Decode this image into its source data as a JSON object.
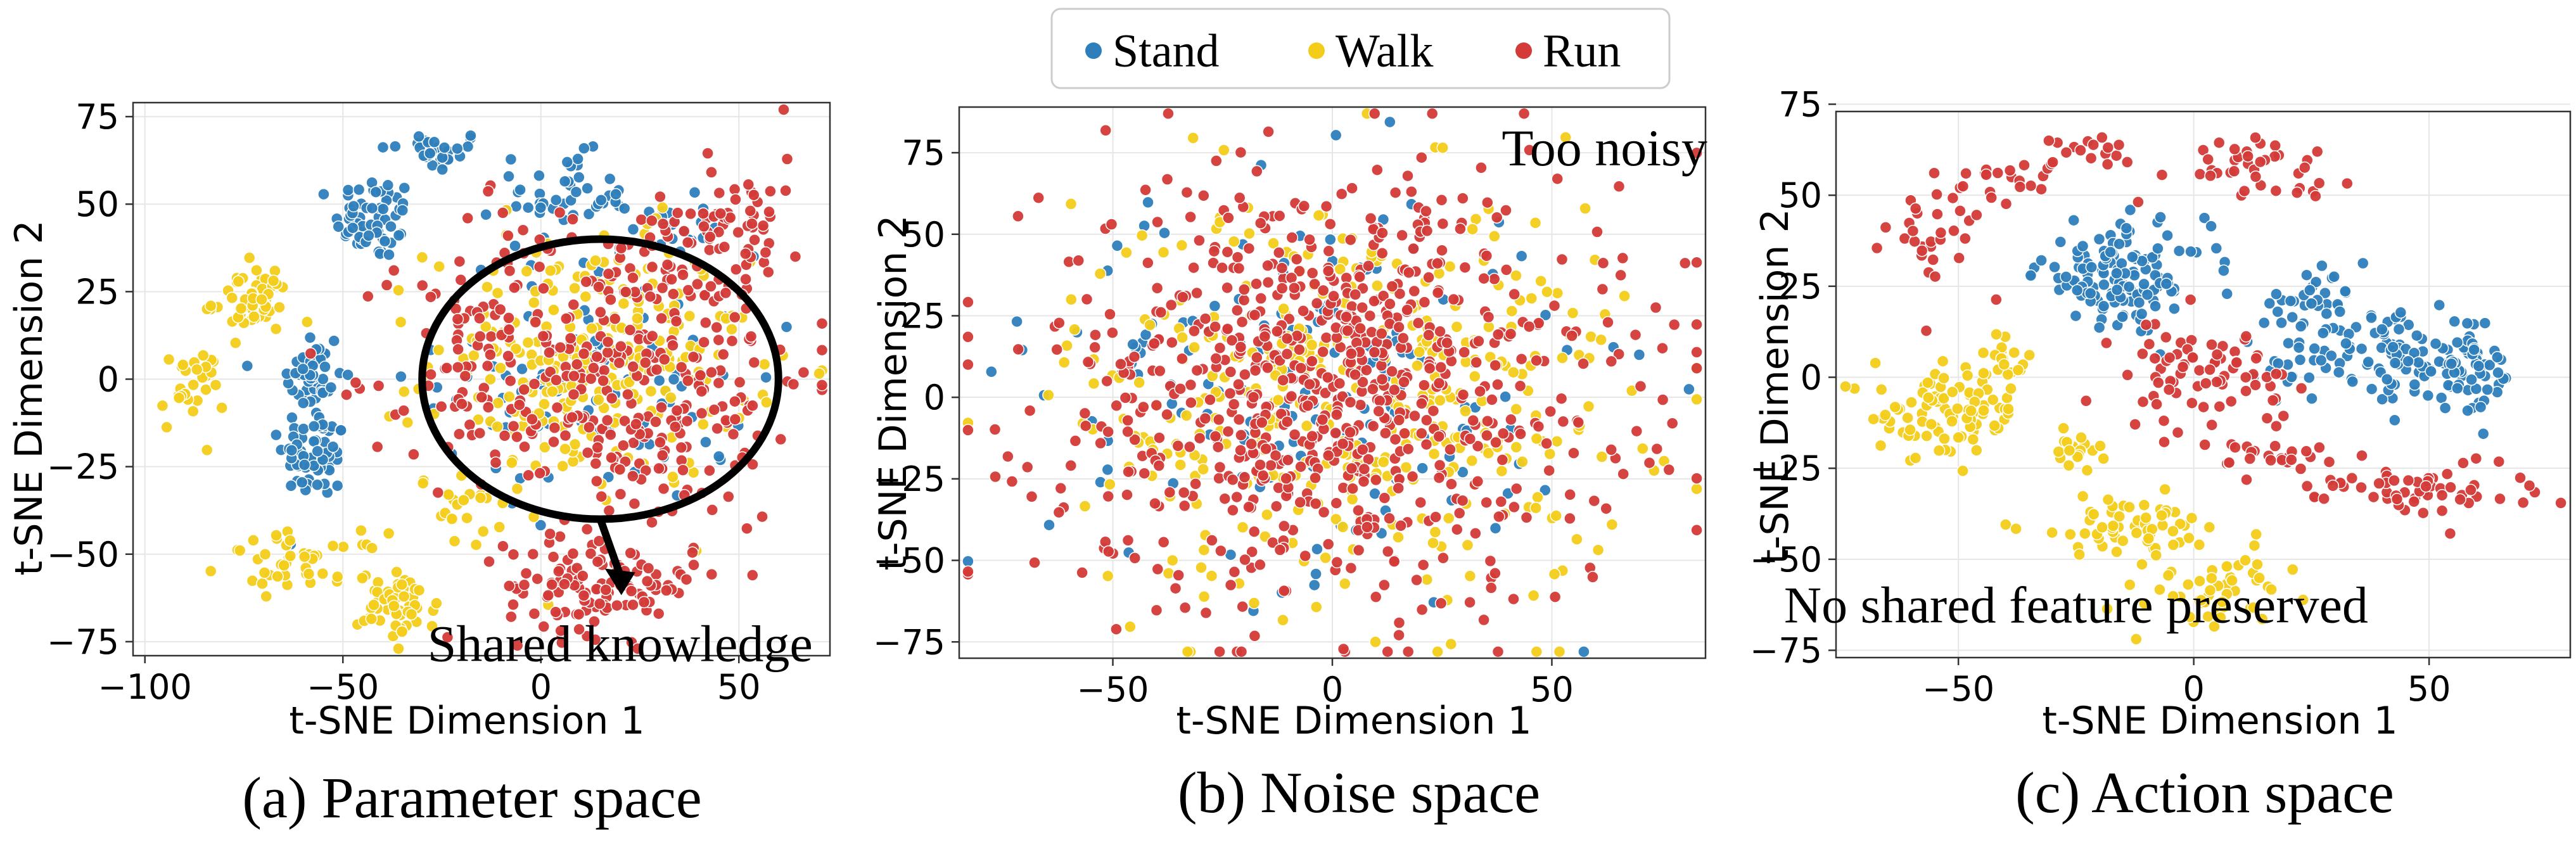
{
  "legend": {
    "items": [
      {
        "label": "Stand",
        "color": "#2e7ebc"
      },
      {
        "label": "Walk",
        "color": "#f3cd1a"
      },
      {
        "label": "Run",
        "color": "#d43a37"
      }
    ]
  },
  "chart_data": [
    {
      "type": "scatter",
      "title": "",
      "caption": "(a) Parameter space",
      "xlabel": "t-SNE Dimension 1",
      "ylabel": "t-SNE Dimension 2",
      "xlim": [
        -103,
        73
      ],
      "ylim": [
        -79,
        79
      ],
      "xticks": [
        -100,
        -50,
        0,
        50
      ],
      "yticks": [
        -75,
        -50,
        -25,
        0,
        25,
        50,
        75
      ],
      "tick_labels_x": [
        "−100",
        "−50",
        "0",
        "50"
      ],
      "tick_labels_y": [
        "−75",
        "−50",
        "−25",
        "0",
        "25",
        "50",
        "75"
      ],
      "grid": true,
      "annotations": [
        {
          "text": "Shared knowledge",
          "x": 20,
          "y": -76
        },
        {
          "shape": "ellipse",
          "cx": 15,
          "cy": 0,
          "rx": 45,
          "ry": 40
        },
        {
          "shape": "arrow",
          "from": [
            15,
            -40
          ],
          "to": [
            20,
            -61
          ]
        }
      ],
      "series": [
        {
          "name": "Stand",
          "color": "#2e7ebc",
          "clusters": [
            {
              "cx": -27,
              "cy": 65,
              "sx": 7,
              "sy": 3,
              "n": 30
            },
            {
              "cx": -42,
              "cy": 46,
              "sx": 5,
              "sy": 6,
              "n": 60
            },
            {
              "cx": -58,
              "cy": 0,
              "sx": 4,
              "sy": 8,
              "n": 50
            },
            {
              "cx": -57,
              "cy": -22,
              "sx": 4,
              "sy": 6,
              "n": 60
            },
            {
              "cx": 6,
              "cy": 52,
              "sx": 8,
              "sy": 6,
              "n": 45
            },
            {
              "cx": 32,
              "cy": 44,
              "sx": 5,
              "sy": 4,
              "n": 20
            },
            {
              "cx": 15,
              "cy": 0,
              "sx": 20,
              "sy": 18,
              "n": 90
            }
          ]
        },
        {
          "name": "Walk",
          "color": "#f3cd1a",
          "clusters": [
            {
              "cx": -88,
              "cy": -3,
              "sx": 4,
              "sy": 6,
              "n": 30
            },
            {
              "cx": -73,
              "cy": 22,
              "sx": 5,
              "sy": 5,
              "n": 50
            },
            {
              "cx": -60,
              "cy": -52,
              "sx": 10,
              "sy": 4,
              "n": 45
            },
            {
              "cx": -36,
              "cy": -65,
              "sx": 5,
              "sy": 5,
              "n": 55
            },
            {
              "cx": -18,
              "cy": -38,
              "sx": 4,
              "sy": 5,
              "n": 20
            },
            {
              "cx": 12,
              "cy": 5,
              "sx": 20,
              "sy": 18,
              "n": 260
            }
          ]
        },
        {
          "name": "Run",
          "color": "#d43a37",
          "clusters": [
            {
              "cx": 20,
              "cy": 2,
              "sx": 25,
              "sy": 22,
              "n": 330
            },
            {
              "cx": 48,
              "cy": 45,
              "sx": 10,
              "sy": 9,
              "n": 70
            },
            {
              "cx": 15,
              "cy": -59,
              "sx": 12,
              "sy": 7,
              "n": 120
            },
            {
              "cx": -15,
              "cy": 12,
              "sx": 10,
              "sy": 18,
              "n": 40
            }
          ]
        }
      ]
    },
    {
      "type": "scatter",
      "title": "",
      "caption": "(b) Noise space",
      "xlabel": "t-SNE Dimension 1",
      "ylabel": "t-SNE Dimension 2",
      "xlim": [
        -85,
        85
      ],
      "ylim": [
        -80,
        89
      ],
      "xticks": [
        -50,
        0,
        50
      ],
      "yticks": [
        -75,
        -50,
        -25,
        0,
        25,
        50,
        75
      ],
      "tick_labels_x": [
        "−50",
        "0",
        "50"
      ],
      "tick_labels_y": [
        "−75",
        "−50",
        "−25",
        "0",
        "25",
        "50",
        "75"
      ],
      "grid": true,
      "annotations": [
        {
          "text": "Too noisy",
          "x": 62,
          "y": 76
        }
      ],
      "series": [
        {
          "name": "Stand",
          "color": "#2e7ebc",
          "clusters": [
            {
              "cx": -5,
              "cy": 5,
              "sx": 30,
              "sy": 30,
              "n": 160
            }
          ]
        },
        {
          "name": "Walk",
          "color": "#f3cd1a",
          "clusters": [
            {
              "cx": 5,
              "cy": 0,
              "sx": 32,
              "sy": 32,
              "n": 380
            }
          ]
        },
        {
          "name": "Run",
          "color": "#d43a37",
          "clusters": [
            {
              "cx": 0,
              "cy": 3,
              "sx": 33,
              "sy": 33,
              "n": 780
            }
          ]
        }
      ]
    },
    {
      "type": "scatter",
      "title": "",
      "caption": "(c) Action space",
      "xlabel": "t-SNE Dimension 1",
      "ylabel": "t-SNE Dimension 2",
      "xlim": [
        -76,
        80
      ],
      "ylim": [
        -77,
        73
      ],
      "xticks": [
        -50,
        0,
        50
      ],
      "yticks": [
        -75,
        -50,
        -25,
        0,
        25,
        50,
        75
      ],
      "tick_labels_x": [
        "−50",
        "0",
        "50"
      ],
      "tick_labels_y": [
        "−75",
        "−50",
        "−25",
        "0",
        "25",
        "50",
        "75"
      ],
      "grid": true,
      "annotations": [
        {
          "text": "No shared feature preserved",
          "x": -25,
          "y": -63
        }
      ],
      "series": [
        {
          "name": "Stand",
          "color": "#2e7ebc",
          "clusters": [
            {
              "cx": -15,
              "cy": 28,
              "sx": 9,
              "sy": 7,
              "n": 130
            },
            {
              "cx": 25,
              "cy": 20,
              "sx": 6,
              "sy": 4,
              "n": 35
            },
            {
              "cx": 45,
              "cy": 5,
              "sx": 10,
              "sy": 6,
              "n": 100
            },
            {
              "cx": 60,
              "cy": 0,
              "sx": 5,
              "sy": 5,
              "n": 40
            },
            {
              "cx": 22,
              "cy": 5,
              "sx": 4,
              "sy": 5,
              "n": 20
            }
          ]
        },
        {
          "name": "Walk",
          "color": "#f3cd1a",
          "clusters": [
            {
              "cx": -52,
              "cy": -10,
              "sx": 8,
              "sy": 6,
              "n": 90
            },
            {
              "cx": -40,
              "cy": 5,
              "sx": 3,
              "sy": 4,
              "n": 20
            },
            {
              "cx": -15,
              "cy": -41,
              "sx": 10,
              "sy": 4,
              "n": 55
            },
            {
              "cx": 5,
              "cy": -58,
              "sx": 7,
              "sy": 6,
              "n": 55
            },
            {
              "cx": -25,
              "cy": -20,
              "sx": 3,
              "sy": 2,
              "n": 20
            }
          ]
        },
        {
          "name": "Run",
          "color": "#d43a37",
          "clusters": [
            {
              "cx": 2,
              "cy": 0,
              "sx": 9,
              "sy": 8,
              "n": 80
            },
            {
              "cx": -55,
              "cy": 38,
              "sx": 5,
              "sy": 8,
              "n": 30
            },
            {
              "cx": -40,
              "cy": 55,
              "sx": 6,
              "sy": 3,
              "n": 22
            },
            {
              "cx": 12,
              "cy": 58,
              "sx": 10,
              "sy": 4,
              "n": 40
            },
            {
              "cx": 45,
              "cy": -30,
              "sx": 14,
              "sy": 4,
              "n": 60
            },
            {
              "cx": 20,
              "cy": -22,
              "sx": 6,
              "sy": 2,
              "n": 20
            },
            {
              "cx": -20,
              "cy": 63,
              "sx": 5,
              "sy": 2,
              "n": 15
            }
          ]
        }
      ]
    }
  ]
}
